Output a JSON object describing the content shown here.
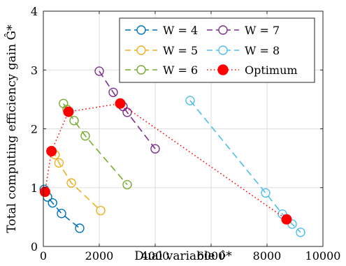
{
  "chart_data": {
    "type": "line",
    "xlabel": "Dual variable ν̂*",
    "ylabel": "Total computing efficiency gain Ĝ*",
    "xlim": [
      0,
      10000
    ],
    "ylim": [
      0,
      4
    ],
    "xticks": [
      0,
      2000,
      4000,
      6000,
      8000,
      10000
    ],
    "yticks": [
      0,
      1,
      2,
      3,
      4
    ],
    "xtick_labels": [
      "0",
      "2000",
      "4000",
      "6000",
      "8000",
      "10000"
    ],
    "ytick_labels": [
      "0",
      "1",
      "2",
      "3",
      "4"
    ],
    "grid": true,
    "legend_placement": "top-right",
    "series": [
      {
        "name": "W = 4",
        "color": "#0072BD",
        "style": "dashed-circle",
        "points": [
          [
            30,
            0.97
          ],
          [
            150,
            0.84
          ],
          [
            330,
            0.74
          ],
          [
            650,
            0.56
          ],
          [
            1300,
            0.31
          ]
        ]
      },
      {
        "name": "W = 5",
        "color": "#EDB120",
        "style": "dashed-circle",
        "points": [
          [
            280,
            1.62
          ],
          [
            420,
            1.56
          ],
          [
            560,
            1.42
          ],
          [
            1000,
            1.08
          ],
          [
            2050,
            0.61
          ]
        ]
      },
      {
        "name": "W = 6",
        "color": "#77AC30",
        "style": "dashed-circle",
        "points": [
          [
            720,
            2.43
          ],
          [
            850,
            2.33
          ],
          [
            1100,
            2.14
          ],
          [
            1500,
            1.88
          ],
          [
            3000,
            1.05
          ]
        ]
      },
      {
        "name": "W = 7",
        "color": "#7E2F8E",
        "style": "dashed-circle",
        "points": [
          [
            2000,
            2.98
          ],
          [
            2500,
            2.62
          ],
          [
            2850,
            2.38
          ],
          [
            3000,
            2.28
          ],
          [
            4000,
            1.66
          ]
        ]
      },
      {
        "name": "W = 8",
        "color": "#4DBEEE",
        "style": "dashed-circle",
        "points": [
          [
            5250,
            2.48
          ],
          [
            7950,
            0.91
          ],
          [
            8550,
            0.55
          ],
          [
            8900,
            0.38
          ],
          [
            9200,
            0.24
          ]
        ]
      },
      {
        "name": "Optimum",
        "color": "#FF0000",
        "style": "dotted-filled",
        "points": [
          [
            60,
            0.93
          ],
          [
            290,
            1.62
          ],
          [
            900,
            2.29
          ],
          [
            2750,
            2.43
          ],
          [
            8700,
            0.46
          ]
        ]
      }
    ]
  }
}
